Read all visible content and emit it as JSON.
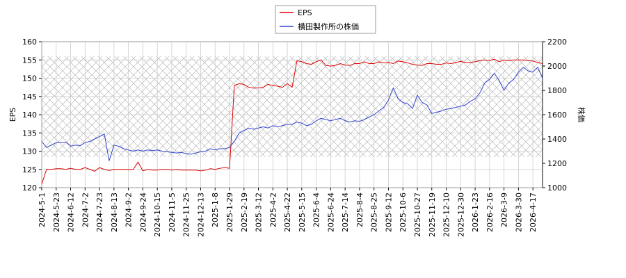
{
  "chart_data": {
    "type": "line",
    "ylabel": "EPS",
    "y2label": "株価",
    "categories": [
      "2024-5-1",
      null,
      null,
      "2024-5-23",
      null,
      null,
      "2024-6-12",
      null,
      null,
      "2024-7-2",
      null,
      null,
      "2024-7-23",
      null,
      null,
      "2024-8-13",
      null,
      null,
      "2024-9-2",
      null,
      null,
      "2024-9-24",
      null,
      null,
      "2024-10-15",
      null,
      null,
      "2024-11-5",
      null,
      null,
      "2024-11-25",
      null,
      null,
      "2024-12-13",
      null,
      null,
      "2025-1-8",
      null,
      null,
      "2025-1-29",
      null,
      null,
      "2025-2-19",
      null,
      null,
      "2025-3-12",
      null,
      null,
      "2025-4-2",
      null,
      null,
      "2025-4-22",
      null,
      null,
      "2025-5-15",
      null,
      null,
      "2025-6-4",
      null,
      null,
      "2025-6-24",
      null,
      null,
      "2025-7-14",
      null,
      null,
      "2025-8-4",
      null,
      null,
      "2025-8-25",
      null,
      null,
      "2025-9-12",
      null,
      null,
      "2025-10-6",
      null,
      null,
      "2025-10-27",
      null,
      null,
      "2025-11-19",
      null,
      null,
      "2025-12-10",
      null,
      null,
      "2025-12-30",
      null,
      null,
      "2026-1-23",
      null,
      null,
      "2026-2-16",
      null,
      null,
      "2026-3-9",
      null,
      null,
      "2026-3-30",
      null,
      null,
      "2026-4-17",
      null,
      null
    ],
    "series": [
      {
        "name": "EPS",
        "color": "#dd0000",
        "values": [
          121,
          125,
          125,
          125.2,
          125.2,
          125,
          125.3,
          125,
          125,
          125.5,
          125,
          124.5,
          125.5,
          125,
          124.7,
          125,
          125,
          125,
          125,
          125,
          127,
          124.6,
          125,
          124.8,
          124.8,
          125,
          125,
          124.8,
          125,
          124.8,
          124.8,
          124.8,
          124.8,
          124.6,
          124.8,
          125.2,
          125,
          125.3,
          125.5,
          125.3,
          148,
          148.5,
          148.3,
          147.5,
          147.3,
          147.3,
          147.5,
          148.3,
          148,
          147.8,
          147.5,
          148.5,
          147.5,
          154.8,
          154.5,
          154,
          153.8,
          154.5,
          155,
          153.5,
          153.3,
          153.5,
          154,
          153.6,
          153.5,
          154,
          154,
          154.5,
          154,
          154,
          154.5,
          154.2,
          154.3,
          154,
          154.7,
          154.5,
          154.2,
          153.8,
          153.6,
          153.5,
          154,
          154,
          153.8,
          153.8,
          154.2,
          154,
          154.3,
          154.6,
          154.3,
          154.3,
          154.5,
          154.8,
          155,
          154.8,
          155.2,
          154.5,
          155,
          154.8,
          155,
          155,
          155,
          154.8,
          154.7,
          154.3,
          154
        ]
      },
      {
        "name": "横田製作所の株価",
        "color": "#3344cc",
        "axis": "y2",
        "values": [
          1380,
          1330,
          1350,
          1370,
          1370,
          1375,
          1340,
          1350,
          1345,
          1370,
          1380,
          1400,
          1420,
          1440,
          1220,
          1350,
          1340,
          1320,
          1310,
          1300,
          1310,
          1300,
          1310,
          1305,
          1310,
          1300,
          1295,
          1290,
          1285,
          1290,
          1280,
          1275,
          1285,
          1295,
          1300,
          1320,
          1310,
          1320,
          1320,
          1330,
          1380,
          1450,
          1470,
          1490,
          1480,
          1490,
          1500,
          1490,
          1510,
          1500,
          1510,
          1520,
          1520,
          1540,
          1530,
          1510,
          1520,
          1550,
          1570,
          1560,
          1550,
          1560,
          1570,
          1550,
          1540,
          1550,
          1545,
          1560,
          1580,
          1600,
          1630,
          1660,
          1720,
          1820,
          1730,
          1700,
          1690,
          1650,
          1760,
          1700,
          1680,
          1610,
          1620,
          1630,
          1645,
          1650,
          1660,
          1670,
          1680,
          1710,
          1730,
          1780,
          1860,
          1890,
          1940,
          1880,
          1800,
          1860,
          1890,
          1950,
          1990,
          1960,
          1950,
          1990,
          1900
        ]
      }
    ],
    "ylim": [
      120,
      160
    ],
    "yticks": [
      120,
      125,
      130,
      135,
      140,
      145,
      150,
      155,
      160
    ],
    "y2lim": [
      1000,
      2200
    ],
    "y2ticks": [
      1000,
      1200,
      1400,
      1600,
      1800,
      2000,
      2200
    ],
    "grid": true,
    "legend": "top"
  }
}
